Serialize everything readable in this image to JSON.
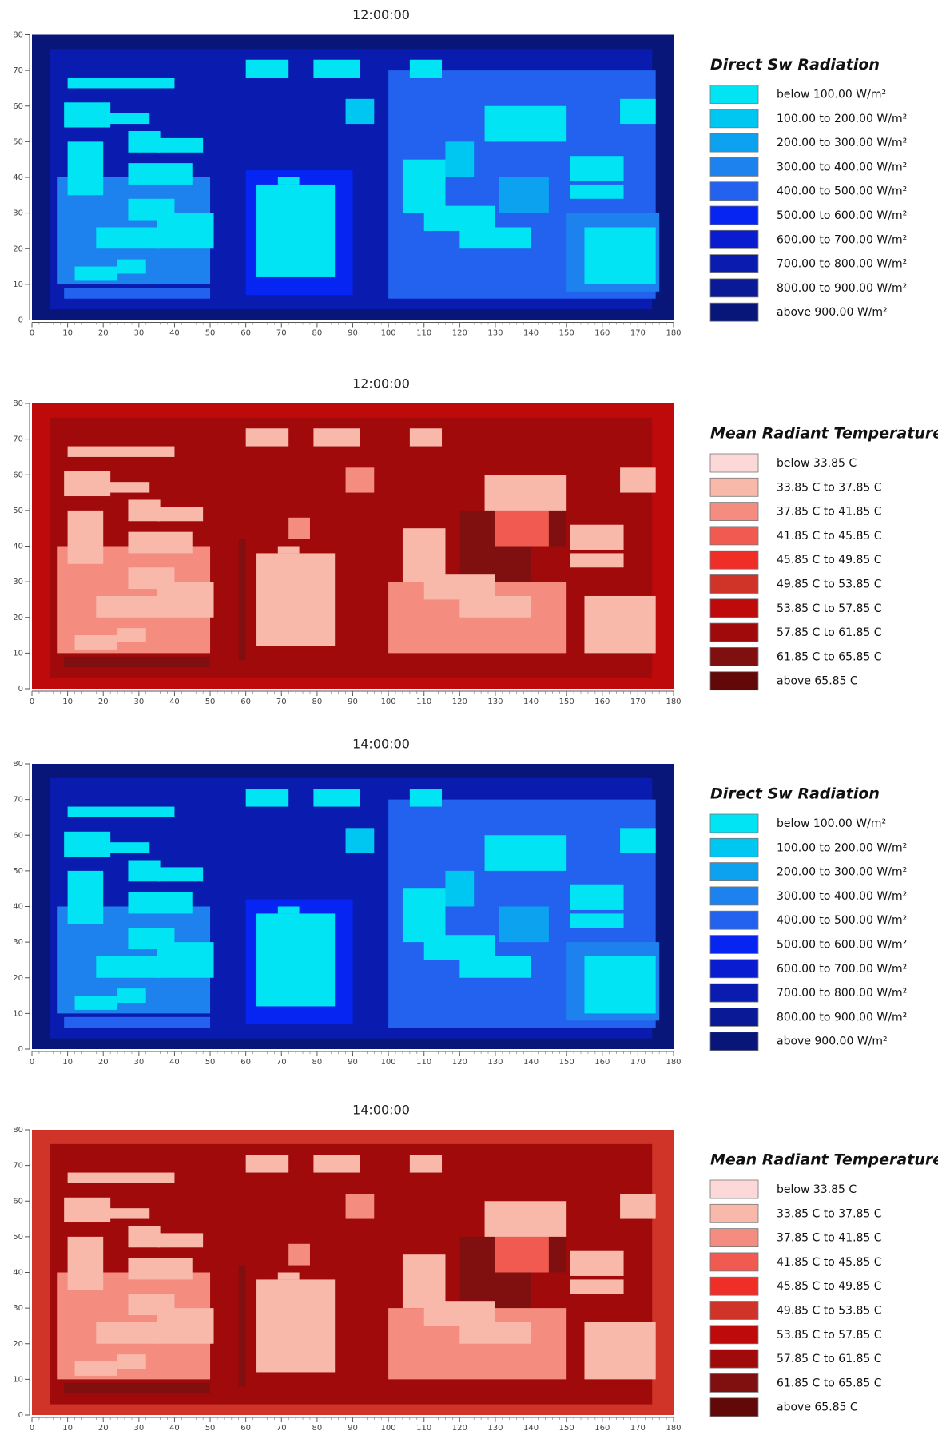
{
  "chart_data": [
    {
      "type": "heatmap",
      "title": "12:00:00",
      "legend_title": "Direct Sw Radiation",
      "legend": [
        {
          "label": "below 100.00 W/m²",
          "color": "#00e4f4"
        },
        {
          "label": "100.00 to 200.00 W/m²",
          "color": "#00c6f2"
        },
        {
          "label": "200.00 to 300.00 W/m²",
          "color": "#0ca2f0"
        },
        {
          "label": "300.00 to 400.00 W/m²",
          "color": "#1e82ee"
        },
        {
          "label": "400.00 to 500.00 W/m²",
          "color": "#2262ee"
        },
        {
          "label": "500.00 to 600.00 W/m²",
          "color": "#0624f2"
        },
        {
          "label": "600.00 to 700.00 W/m²",
          "color": "#0a1cd0"
        },
        {
          "label": "700.00 to 800.00 W/m²",
          "color": "#0a1cb0"
        },
        {
          "label": "800.00 to 900.00 W/m²",
          "color": "#0a1a96"
        },
        {
          "label": "above 900.00 W/m²",
          "color": "#08167a"
        }
      ],
      "xlim": [
        0,
        180
      ],
      "xticks": [
        0,
        10,
        20,
        30,
        40,
        50,
        60,
        70,
        80,
        90,
        100,
        110,
        120,
        130,
        140,
        150,
        160,
        170,
        180
      ],
      "ylim": [
        0,
        80
      ],
      "yticks": [
        0,
        10,
        20,
        30,
        40,
        50,
        60,
        70,
        80
      ]
    },
    {
      "type": "heatmap",
      "title": "12:00:00",
      "legend_title": "Mean Radiant Temperature",
      "legend": [
        {
          "label": "below 33.85 C",
          "color": "#fcd8d8"
        },
        {
          "label": "33.85 C to 37.85 C",
          "color": "#f8b8aa"
        },
        {
          "label": "37.85 C to 41.85 C",
          "color": "#f48c80"
        },
        {
          "label": "41.85 C to 45.85 C",
          "color": "#f05a50"
        },
        {
          "label": "45.85 C to 49.85 C",
          "color": "#f02e28"
        },
        {
          "label": "49.85 C to 53.85 C",
          "color": "#d03428"
        },
        {
          "label": "53.85 C to 57.85 C",
          "color": "#be0a0a"
        },
        {
          "label": "57.85 C to 61.85 C",
          "color": "#a00a0a"
        },
        {
          "label": "61.85 C to 65.85 C",
          "color": "#801010"
        },
        {
          "label": "above 65.85 C",
          "color": "#620808"
        }
      ],
      "xlim": [
        0,
        180
      ],
      "xticks": [
        0,
        10,
        20,
        30,
        40,
        50,
        60,
        70,
        80,
        90,
        100,
        110,
        120,
        130,
        140,
        150,
        160,
        170,
        180
      ],
      "ylim": [
        0,
        80
      ],
      "yticks": [
        0,
        10,
        20,
        30,
        40,
        50,
        60,
        70,
        80
      ]
    },
    {
      "type": "heatmap",
      "title": "14:00:00",
      "legend_title": "Direct Sw Radiation",
      "legend": [
        {
          "label": "below 100.00 W/m²",
          "color": "#00e4f4"
        },
        {
          "label": "100.00 to 200.00 W/m²",
          "color": "#00c6f2"
        },
        {
          "label": "200.00 to 300.00 W/m²",
          "color": "#0ca2f0"
        },
        {
          "label": "300.00 to 400.00 W/m²",
          "color": "#1e82ee"
        },
        {
          "label": "400.00 to 500.00 W/m²",
          "color": "#2262ee"
        },
        {
          "label": "500.00 to 600.00 W/m²",
          "color": "#0624f2"
        },
        {
          "label": "600.00 to 700.00 W/m²",
          "color": "#0a1cd0"
        },
        {
          "label": "700.00 to 800.00 W/m²",
          "color": "#0a1cb0"
        },
        {
          "label": "800.00 to 900.00 W/m²",
          "color": "#0a1a96"
        },
        {
          "label": "above 900.00 W/m²",
          "color": "#08167a"
        }
      ],
      "xlim": [
        0,
        180
      ],
      "xticks": [
        0,
        10,
        20,
        30,
        40,
        50,
        60,
        70,
        80,
        90,
        100,
        110,
        120,
        130,
        140,
        150,
        160,
        170,
        180
      ],
      "ylim": [
        0,
        80
      ],
      "yticks": [
        0,
        10,
        20,
        30,
        40,
        50,
        60,
        70,
        80
      ]
    },
    {
      "type": "heatmap",
      "title": "14:00:00",
      "legend_title": "Mean Radiant Temperature",
      "legend": [
        {
          "label": "below 33.85 C",
          "color": "#fcd8d8"
        },
        {
          "label": "33.85 C to 37.85 C",
          "color": "#f8b8aa"
        },
        {
          "label": "37.85 C to 41.85 C",
          "color": "#f48c80"
        },
        {
          "label": "41.85 C to 45.85 C",
          "color": "#f05a50"
        },
        {
          "label": "45.85 C to 49.85 C",
          "color": "#f02e28"
        },
        {
          "label": "49.85 C to 53.85 C",
          "color": "#d03428"
        },
        {
          "label": "53.85 C to 57.85 C",
          "color": "#be0a0a"
        },
        {
          "label": "57.85 C to 61.85 C",
          "color": "#a00a0a"
        },
        {
          "label": "61.85 C to 65.85 C",
          "color": "#801010"
        },
        {
          "label": "above 65.85 C",
          "color": "#620808"
        }
      ],
      "xlim": [
        0,
        180
      ],
      "xticks": [
        0,
        10,
        20,
        30,
        40,
        50,
        60,
        70,
        80,
        90,
        100,
        110,
        120,
        130,
        140,
        150,
        160,
        170,
        180
      ],
      "ylim": [
        0,
        80
      ],
      "yticks": [
        0,
        10,
        20,
        30,
        40,
        50,
        60,
        70,
        80
      ]
    }
  ]
}
